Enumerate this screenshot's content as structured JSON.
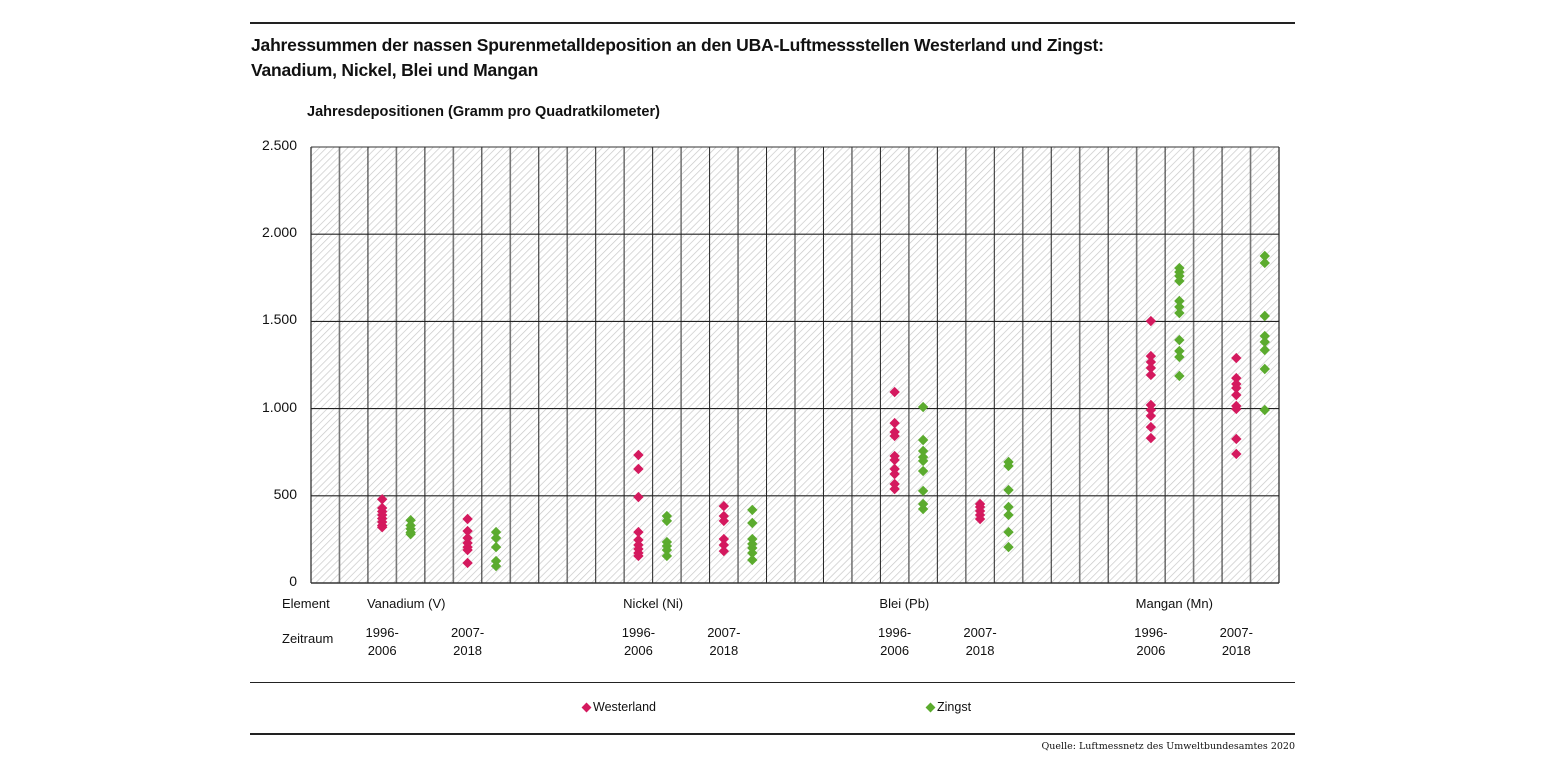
{
  "chart_data": {
    "type": "scatter",
    "title": "Jahressummen der nassen Spurenmetalldeposition an den UBA-Luftmessstellen Westerland und Zingst:",
    "subtitle": "Vanadium, Nickel, Blei und Mangan",
    "ylabel": "Jahresdepositionen (Gramm pro Quadratkilometer)",
    "ylim": [
      0,
      2500
    ],
    "yticks": [
      {
        "value": 0,
        "label": "0"
      },
      {
        "value": 500,
        "label": "500"
      },
      {
        "value": 1000,
        "label": "1.000"
      },
      {
        "value": 1500,
        "label": "1.500"
      },
      {
        "value": 2000,
        "label": "2.000"
      },
      {
        "value": 2500,
        "label": "2.500"
      }
    ],
    "grid": true,
    "legend_position": "bottom",
    "row_labels": {
      "element": "Element",
      "period": "Zeitraum"
    },
    "elements": [
      {
        "name": "Vanadium (V)",
        "periods": [
          {
            "line1": "1996-",
            "line2": "2006"
          },
          {
            "line1": "2007-",
            "line2": "2018"
          }
        ]
      },
      {
        "name": "Nickel (Ni)",
        "periods": [
          {
            "line1": "1996-",
            "line2": "2006"
          },
          {
            "line1": "2007-",
            "line2": "2018"
          }
        ]
      },
      {
        "name": "Blei (Pb)",
        "periods": [
          {
            "line1": "1996-",
            "line2": "2006"
          },
          {
            "line1": "2007-",
            "line2": "2018"
          }
        ]
      },
      {
        "name": "Mangan (Mn)",
        "periods": [
          {
            "line1": "1996-",
            "line2": "2006"
          },
          {
            "line1": "2007-",
            "line2": "2018"
          }
        ]
      }
    ],
    "series": [
      {
        "name": "Westerland",
        "color": "#d4195e",
        "groups": [
          {
            "element": "Vanadium (V)",
            "period": "1996-2006",
            "values": [
              480,
              430,
              410,
              390,
              370,
              350,
              330,
              320
            ]
          },
          {
            "element": "Vanadium (V)",
            "period": "2007-2018",
            "values": [
              367,
              298,
              258,
              229,
              206,
              189,
              115
            ]
          },
          {
            "element": "Nickel (Ni)",
            "period": "1996-2006",
            "values": [
              734,
              654,
              493,
              292,
              247,
              218,
              195,
              172,
              155
            ]
          },
          {
            "element": "Nickel (Ni)",
            "period": "2007-2018",
            "values": [
              441,
              384,
              356,
              252,
              218,
              183
            ]
          },
          {
            "element": "Blei (Pb)",
            "period": "1996-2006",
            "values": [
              1095,
              917,
              866,
              843,
              728,
              705,
              654,
              625,
              568,
              539
            ]
          },
          {
            "element": "Blei (Pb)",
            "period": "2007-2018",
            "values": [
              453,
              436,
              413,
              390,
              367
            ]
          },
          {
            "element": "Mangan (Mn)",
            "period": "1996-2006",
            "values": [
              1502,
              1301,
              1267,
              1233,
              1193,
              1021,
              992,
              958,
              894,
              831
            ]
          },
          {
            "element": "Mangan (Mn)",
            "period": "2007-2018",
            "values": [
              1290,
              1175,
              1141,
              1118,
              1078,
              1015,
              998,
              826,
              740
            ]
          }
        ]
      },
      {
        "name": "Zingst",
        "color": "#5bab2e",
        "groups": [
          {
            "element": "Vanadium (V)",
            "period": "1996-2006",
            "values": [
              360,
              330,
              310,
              290,
              280
            ]
          },
          {
            "element": "Vanadium (V)",
            "period": "2007-2018",
            "values": [
              292,
              258,
              206,
              126,
              97
            ]
          },
          {
            "element": "Nickel (Ni)",
            "period": "1996-2006",
            "values": [
              384,
              356,
              235,
              212,
              189,
              155
            ]
          },
          {
            "element": "Nickel (Ni)",
            "period": "2007-2018",
            "values": [
              419,
              344,
              252,
              224,
              201,
              172,
              132
            ]
          },
          {
            "element": "Blei (Pb)",
            "period": "1996-2006",
            "values": [
              1009,
              820,
              757,
              722,
              700,
              642,
              528,
              453,
              424
            ]
          },
          {
            "element": "Blei (Pb)",
            "period": "2007-2018",
            "values": [
              694,
              671,
              533,
              436,
              390,
              292,
              206
            ]
          },
          {
            "element": "Mangan (Mn)",
            "period": "1996-2006",
            "values": [
              1806,
              1783,
              1760,
              1732,
              1617,
              1583,
              1548,
              1393,
              1330,
              1296,
              1187
            ]
          },
          {
            "element": "Mangan (Mn)",
            "period": "2007-2018",
            "values": [
              1875,
              1835,
              1531,
              1416,
              1382,
              1336,
              1227,
              992
            ]
          }
        ]
      }
    ],
    "source": "Quelle: Luftmessnetz des Umweltbundesamtes 2020"
  }
}
